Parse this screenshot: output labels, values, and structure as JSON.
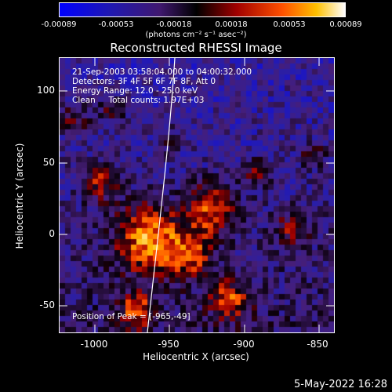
{
  "colorbar": {
    "ticks": [
      "-0.00089",
      "-0.00053",
      "-0.00018",
      "0.00018",
      "0.00053",
      "0.00089"
    ],
    "units": "(photons cm⁻² s⁻¹ asec⁻²)"
  },
  "title": "Reconstructed RHESSI Image",
  "info": {
    "line1": "21-Sep-2003 03:58:04.000 to 04:00:32.000",
    "line2": "Detectors: 3F 4F 5F 6F 7F 8F, Att 0",
    "line3": "Energy Range: 12.0 - 25.0 keV",
    "line4": "Clean     Total counts: 1.97E+03"
  },
  "peak": "Position of Peak = [-965,-49]",
  "axes": {
    "xlabel": "Heliocentric X (arcsec)",
    "ylabel": "Heliocentric Y (arcsec)",
    "xticks": [
      "-1000",
      "-950",
      "-900",
      "-850"
    ],
    "yticks": [
      "100",
      "50",
      "0",
      "-50"
    ]
  },
  "date": "5-May-2022 16:28",
  "colors": {
    "background": "#000000",
    "foreground": "#ffffff"
  }
}
